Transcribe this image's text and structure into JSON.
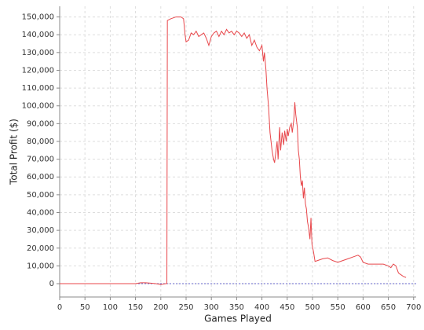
{
  "chart_data": {
    "type": "line",
    "x_label": "Games Played",
    "y_label": "Total Profit ($)",
    "x": [
      0,
      50,
      100,
      150,
      160,
      170,
      180,
      190,
      200,
      210,
      212,
      213,
      220,
      230,
      240,
      245,
      248,
      250,
      255,
      260,
      265,
      270,
      275,
      280,
      285,
      290,
      295,
      300,
      305,
      310,
      315,
      320,
      325,
      330,
      335,
      340,
      345,
      350,
      355,
      360,
      365,
      370,
      375,
      380,
      385,
      390,
      395,
      400,
      403,
      405,
      408,
      410,
      413,
      416,
      418,
      420,
      423,
      425,
      428,
      430,
      432,
      435,
      437,
      440,
      443,
      445,
      448,
      450,
      452,
      455,
      458,
      460,
      463,
      465,
      467,
      470,
      472,
      474,
      476,
      478,
      480,
      482,
      484,
      486,
      488,
      490,
      492,
      495,
      497,
      499,
      502,
      505,
      510,
      520,
      530,
      540,
      550,
      560,
      570,
      580,
      590,
      595,
      600,
      610,
      620,
      630,
      640,
      650,
      655,
      660,
      665,
      670,
      675,
      680,
      685
    ],
    "series": [
      {
        "name": "Total Profit",
        "color": "#e8474b",
        "values": [
          0,
          0,
          0,
          0,
          500,
          500,
          300,
          0,
          -500,
          0,
          0,
          148000,
          149000,
          150000,
          150000,
          149000,
          140000,
          136000,
          137000,
          141000,
          140000,
          142000,
          139000,
          140000,
          141000,
          138000,
          134000,
          139000,
          141000,
          142000,
          139000,
          142000,
          140000,
          143000,
          141000,
          142000,
          140000,
          142000,
          141000,
          139000,
          141000,
          138000,
          140000,
          134000,
          137000,
          133000,
          131000,
          134000,
          125000,
          130000,
          120000,
          110000,
          100000,
          85000,
          80000,
          75000,
          70000,
          68000,
          75000,
          80000,
          70000,
          88000,
          75000,
          85000,
          78000,
          86000,
          80000,
          87000,
          83000,
          88000,
          90000,
          85000,
          92000,
          102000,
          95000,
          88000,
          75000,
          70000,
          60000,
          55000,
          58000,
          48000,
          54000,
          45000,
          42000,
          35000,
          32000,
          25000,
          37000,
          22000,
          18000,
          12500,
          13000,
          14000,
          14500,
          13000,
          12000,
          13000,
          14000,
          15000,
          16000,
          15000,
          12000,
          11000,
          11000,
          11000,
          11000,
          10000,
          9000,
          11000,
          10000,
          6000,
          5000,
          4000,
          3500
        ]
      }
    ],
    "xlim": [
      0,
      705
    ],
    "ylim": [
      -7500,
      156000
    ],
    "xticks": [
      0,
      50,
      100,
      150,
      200,
      250,
      300,
      350,
      400,
      450,
      500,
      550,
      600,
      650,
      700
    ],
    "yticks": [
      0,
      {
        "value": 10000,
        "label": "10,000"
      },
      {
        "value": 20000,
        "label": "20,000"
      },
      {
        "value": 30000,
        "label": "30,000"
      },
      {
        "value": 40000,
        "label": "40,000"
      },
      {
        "value": 50000,
        "label": "50,000"
      },
      {
        "value": 60000,
        "label": "60,000"
      },
      {
        "value": 70000,
        "label": "70,000"
      },
      {
        "value": 80000,
        "label": "80,000"
      },
      {
        "value": 90000,
        "label": "90,000"
      },
      {
        "value": 100000,
        "label": "100,000"
      },
      {
        "value": 110000,
        "label": "110,000"
      },
      {
        "value": 120000,
        "label": "120,000"
      },
      {
        "value": 130000,
        "label": "130,000"
      },
      {
        "value": 140000,
        "label": "140,000"
      },
      {
        "value": 150000,
        "label": "150,000"
      }
    ],
    "grid": true,
    "zero_line_color": "#6666cc"
  }
}
